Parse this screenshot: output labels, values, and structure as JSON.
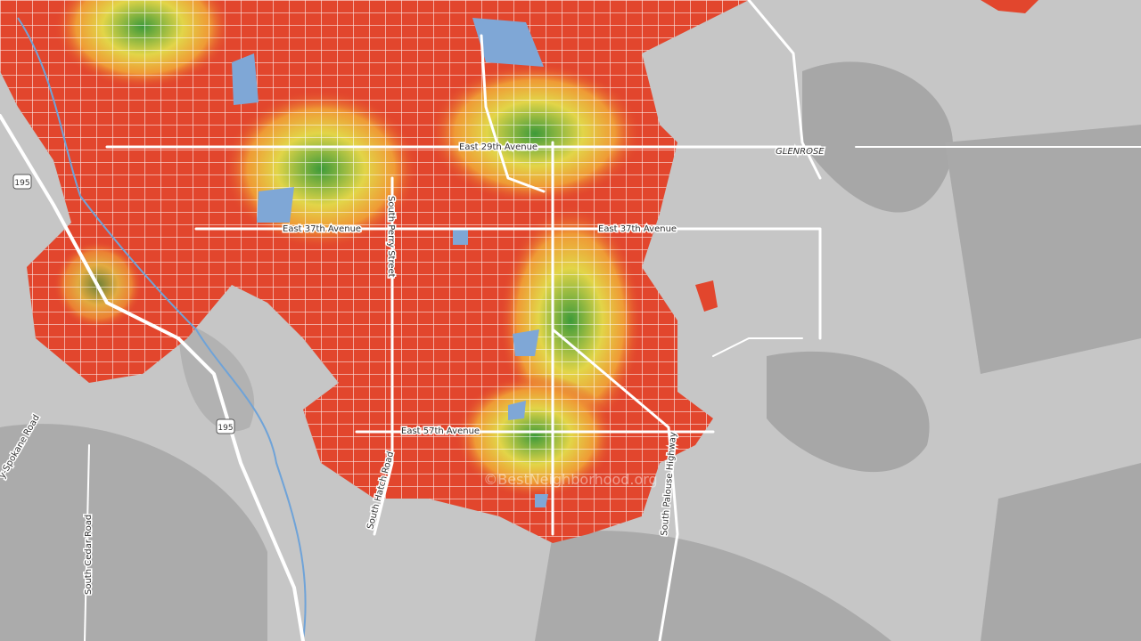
{
  "labels": {
    "street1": "East 29th Avenue",
    "street2": "East 37th Avenue",
    "street3": "East 37th Avenue",
    "street4": "East 57th Avenue",
    "area": "GLENROSE",
    "street5": "South Perry Street",
    "street6": "South Hatch Road",
    "street7": "South Palouse Highway",
    "street8": "South Cedar Road",
    "street9": "y-Spokane Road",
    "shield1": "195",
    "shield2": "195"
  },
  "watermark": "©BestNeighborhood.org"
}
